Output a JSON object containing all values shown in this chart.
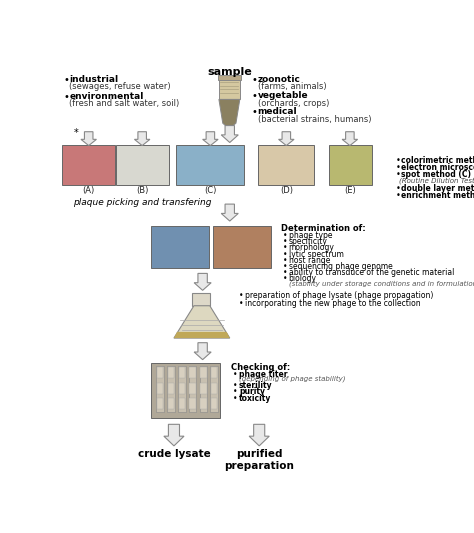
{
  "title": "sample",
  "bg_color": "#ffffff",
  "left_bullets": [
    {
      "bold": "industrial",
      "sub": "(sewages, refuse water)"
    },
    {
      "bold": "environmental",
      "sub": "(fresh and salt water, soil)"
    }
  ],
  "right_bullets": [
    {
      "bold": "zoonotic",
      "sub": "(farms, animals)"
    },
    {
      "bold": "vegetable",
      "sub": "(orchards, crops)"
    },
    {
      "bold": "medical",
      "sub": "(bacterial strains, humans)"
    }
  ],
  "method_bullets": [
    {
      "bold": "colorimetric method (A)",
      "italic": false
    },
    {
      "bold": "electron microscopy (B)",
      "italic": false
    },
    {
      "bold": "spot method (C)",
      "italic": false
    },
    {
      "bold": "(Routine Dilution Test )",
      "italic": true
    },
    {
      "bold": "double layer method (D)",
      "italic": false
    },
    {
      "bold": "enrichment method (E)",
      "italic": false
    }
  ],
  "img_labels": [
    "(A)",
    "(B)",
    "(C)",
    "(D)",
    "(E)"
  ],
  "img_colors": [
    "#c87878",
    "#d8d8d0",
    "#8ab0c8",
    "#d8c8a8",
    "#b8b870"
  ],
  "plaque_label": "plaque picking and transfering",
  "determination_title": "Determination of:",
  "determination_bullets": [
    "phage type",
    "specificity",
    "morphology",
    "lytic spectrum",
    "host range",
    "sequencing phage genome",
    "ability to transduce of the genetic material",
    "biology"
  ],
  "determination_sub": "(stability under storage conditions and in formulations)",
  "flask_bullets": [
    "preparation of phage lysate (phage propagation)",
    "incorporating the new phage to the collection"
  ],
  "checking_title": "Checking of:",
  "checking_bullets": [
    {
      "bold": "phage titer",
      "sub": "(depending of phage stability)"
    },
    {
      "bold": "sterility",
      "sub": ""
    },
    {
      "bold": "purity",
      "sub": ""
    },
    {
      "bold": "toxicity",
      "sub": ""
    }
  ],
  "final_left": "crude lysate",
  "final_right": "purified\npreparation",
  "arrow_color": "#e8e8e8",
  "arrow_edge": "#888888"
}
